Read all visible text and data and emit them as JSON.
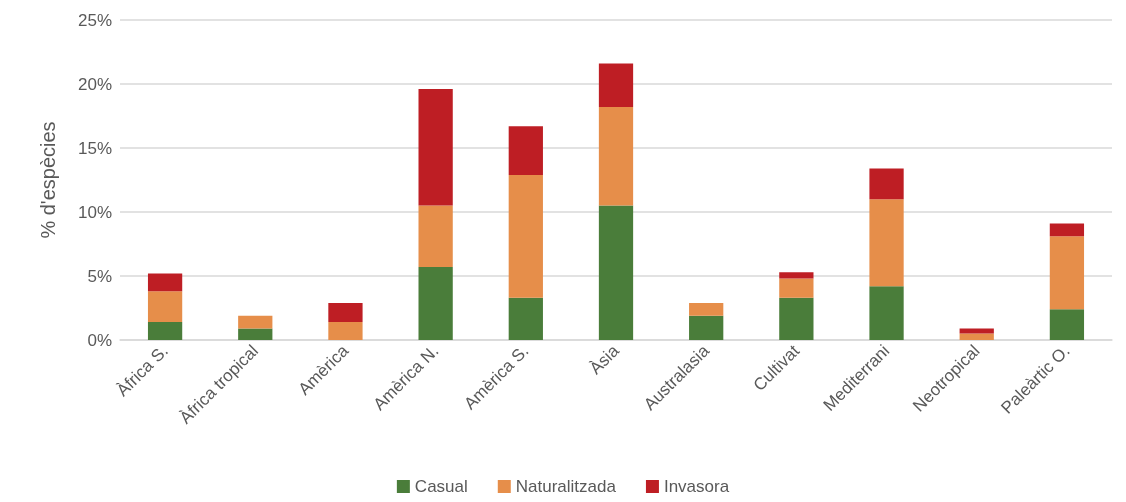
{
  "chart_data": {
    "type": "bar",
    "stacked": true,
    "ylabel": "% d'espècies",
    "categories": [
      "Àfrica S.",
      "Àfrica tropical",
      "Amèrica",
      "Amèrica N.",
      "Amèrica S.",
      "Àsia",
      "Australasia",
      "Cultivat",
      "Mediterrani",
      "Neotropical",
      "Paleàrtic O."
    ],
    "series": [
      {
        "name": "Casual",
        "color": "#4a7d3a",
        "values": [
          1.4,
          0.9,
          0,
          5.7,
          3.3,
          10.5,
          1.9,
          3.3,
          4.2,
          0,
          2.4
        ]
      },
      {
        "name": "Naturalitzada",
        "color": "#e68e4a",
        "values": [
          2.4,
          1.0,
          1.4,
          4.8,
          9.6,
          7.7,
          1.0,
          1.5,
          6.8,
          0.5,
          5.7
        ]
      },
      {
        "name": "Invasora",
        "color": "#be1e24",
        "values": [
          1.4,
          0,
          1.5,
          9.1,
          3.8,
          3.4,
          0,
          0.5,
          2.4,
          0.4,
          1.0
        ]
      }
    ],
    "ylim": [
      0,
      25
    ],
    "yticks": [
      {
        "value": 0,
        "label": "0%"
      },
      {
        "value": 5,
        "label": "5%"
      },
      {
        "value": 10,
        "label": "10%"
      },
      {
        "value": 15,
        "label": "15%"
      },
      {
        "value": 20,
        "label": "20%"
      },
      {
        "value": 25,
        "label": "25%"
      }
    ],
    "grid": "y",
    "legend": "bottom"
  }
}
